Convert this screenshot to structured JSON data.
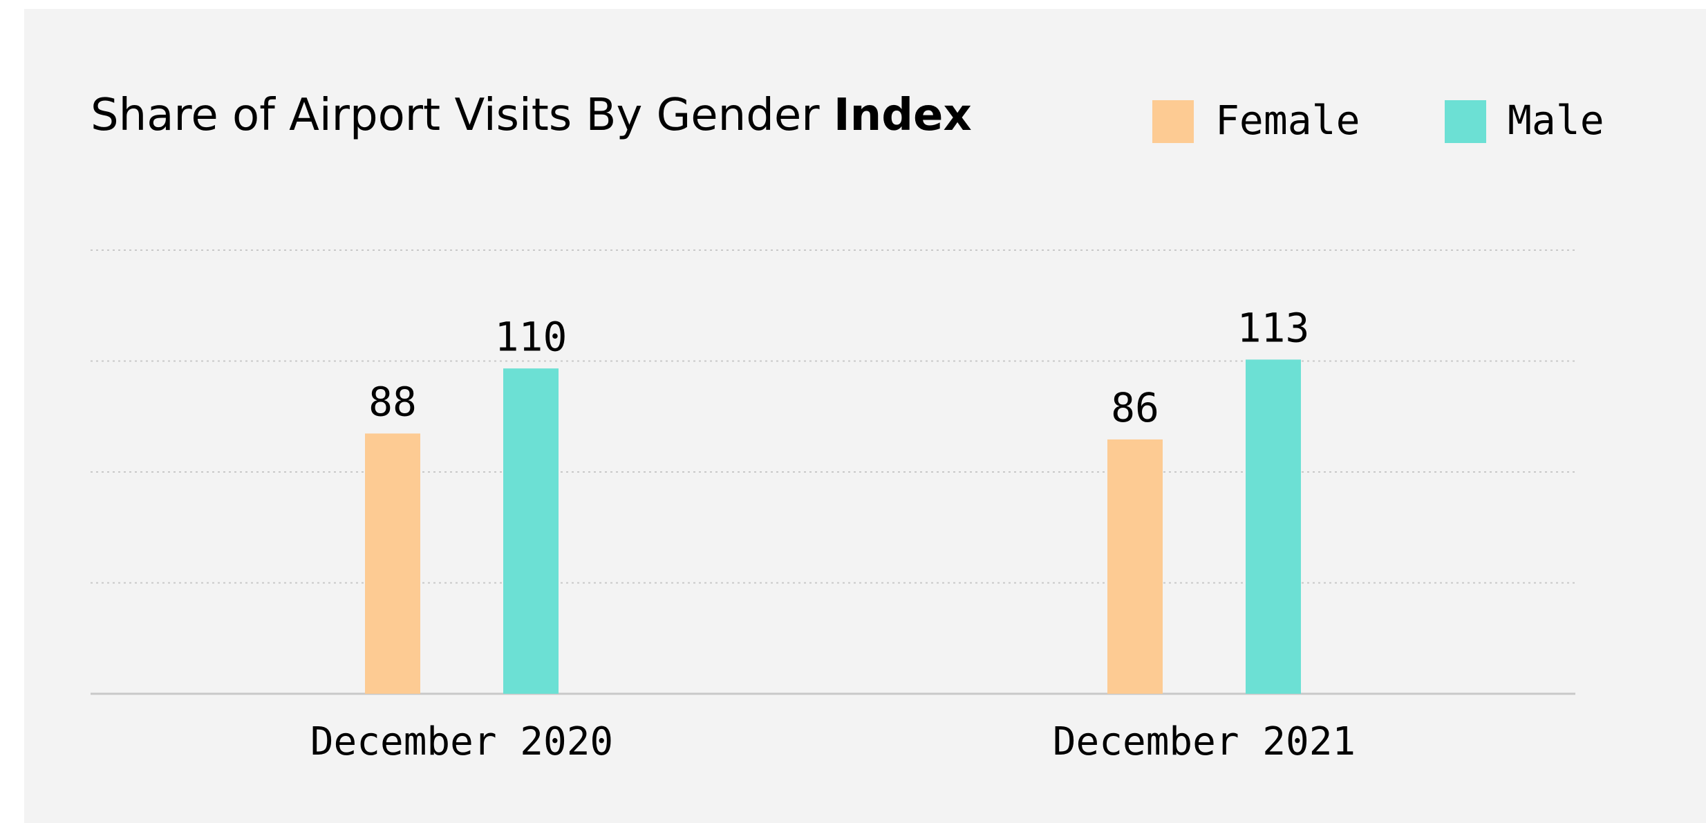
{
  "chart_data": {
    "type": "bar",
    "title": "Share of Airport Visits By Gender",
    "title_emphasis": "Index",
    "categories": [
      "December 2020",
      "December 2021"
    ],
    "series": [
      {
        "name": "Female",
        "color": "#fdcb93",
        "values": [
          88,
          86
        ]
      },
      {
        "name": "Male",
        "color": "#6ce0d4",
        "values": [
          110,
          113
        ]
      }
    ],
    "ylim": [
      0,
      150
    ],
    "yticks": [
      0,
      37.5,
      75,
      112.5,
      150
    ],
    "grid": true,
    "legend": "top-right"
  }
}
